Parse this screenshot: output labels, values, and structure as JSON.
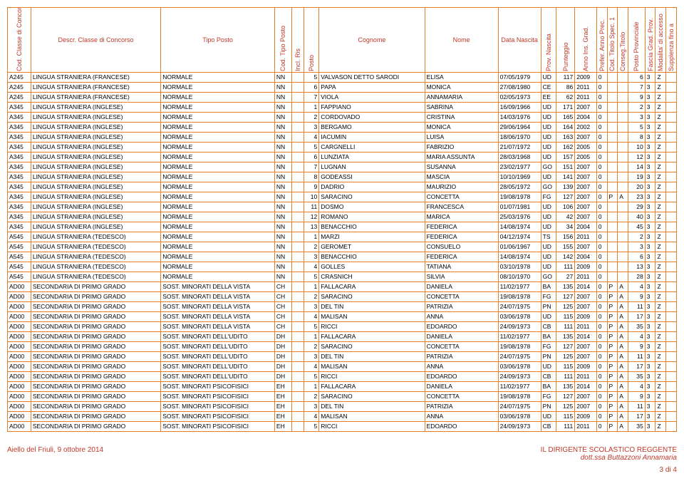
{
  "headers": [
    "Cod. Classe di Concorso",
    "Descr. Classe di Concorso",
    "Tipo Posto",
    "Cod. Tipo Posto",
    "Incl. Ris",
    "Posto",
    "Cognome",
    "Nome",
    "Data Nascita",
    "Prov. Nascita",
    "Punteggio",
    "Anno Ins. Grad.",
    "Prefer. Anno Prec.",
    "Cod. Titolo Spec. 1",
    "Conseg.Titolo",
    "Posto Provinciale",
    "Fascia Grad. Prov.",
    "Modalita' di accesso",
    "Supplenza fino a"
  ],
  "vertical_flags": [
    true,
    false,
    false,
    true,
    true,
    true,
    false,
    false,
    false,
    true,
    true,
    true,
    true,
    true,
    true,
    true,
    true,
    true,
    true
  ],
  "col_class": [
    "c0",
    "c1",
    "c2",
    "c3",
    "c4",
    "c5",
    "c6",
    "c7",
    "c8",
    "c9",
    "c10",
    "c11",
    "c12",
    "c13",
    "c14",
    "c15",
    "c16",
    "c17",
    "c18"
  ],
  "col_align": [
    "",
    "",
    "",
    "",
    "",
    "num",
    "",
    "",
    "",
    "",
    "num",
    "",
    "",
    "",
    "",
    "num",
    "",
    "",
    ""
  ],
  "rows": [
    [
      "A245",
      "LINGUA STRANIERA (FRANCESE)",
      "NORMALE",
      "NN",
      "",
      "5",
      "VALVASON DETTO SARODI",
      "ELISA",
      "07/05/1979",
      "UD",
      "117",
      "2009",
      "0",
      "",
      "",
      "6",
      "3",
      "Z",
      ""
    ],
    [
      "A245",
      "LINGUA STRANIERA (FRANCESE)",
      "NORMALE",
      "NN",
      "",
      "6",
      "PAPA",
      "MONICA",
      "27/08/1980",
      "CE",
      "86",
      "2011",
      "0",
      "",
      "",
      "7",
      "3",
      "Z",
      ""
    ],
    [
      "A245",
      "LINGUA STRANIERA (FRANCESE)",
      "NORMALE",
      "NN",
      "",
      "7",
      "VIOLA",
      "ANNAMARIA",
      "02/05/1973",
      "EE",
      "62",
      "2011",
      "0",
      "",
      "",
      "9",
      "3",
      "Z",
      ""
    ],
    [
      "A345",
      "LINGUA STRANIERA (INGLESE)",
      "NORMALE",
      "NN",
      "",
      "1",
      "FAPPIANO",
      "SABRINA",
      "16/09/1966",
      "UD",
      "171",
      "2007",
      "0",
      "",
      "",
      "2",
      "3",
      "Z",
      ""
    ],
    [
      "A345",
      "LINGUA STRANIERA (INGLESE)",
      "NORMALE",
      "NN",
      "",
      "2",
      "CORDOVADO",
      "CRISTINA",
      "14/03/1976",
      "UD",
      "165",
      "2004",
      "0",
      "",
      "",
      "3",
      "3",
      "Z",
      ""
    ],
    [
      "A345",
      "LINGUA STRANIERA (INGLESE)",
      "NORMALE",
      "NN",
      "",
      "3",
      "BERGAMO",
      "MONICA",
      "29/06/1964",
      "UD",
      "164",
      "2002",
      "0",
      "",
      "",
      "5",
      "3",
      "Z",
      ""
    ],
    [
      "A345",
      "LINGUA STRANIERA (INGLESE)",
      "NORMALE",
      "NN",
      "",
      "4",
      "IACUMIN",
      "LUISA",
      "18/06/1970",
      "UD",
      "163",
      "2007",
      "0",
      "",
      "",
      "8",
      "3",
      "Z",
      ""
    ],
    [
      "A345",
      "LINGUA STRANIERA (INGLESE)",
      "NORMALE",
      "NN",
      "",
      "5",
      "CARGNELLI",
      "FABRIZIO",
      "21/07/1972",
      "UD",
      "162",
      "2005",
      "0",
      "",
      "",
      "10",
      "3",
      "Z",
      ""
    ],
    [
      "A345",
      "LINGUA STRANIERA (INGLESE)",
      "NORMALE",
      "NN",
      "",
      "6",
      "LUNZIATA",
      "MARIA ASSUNTA",
      "28/03/1968",
      "UD",
      "157",
      "2005",
      "0",
      "",
      "",
      "12",
      "3",
      "Z",
      ""
    ],
    [
      "A345",
      "LINGUA STRANIERA (INGLESE)",
      "NORMALE",
      "NN",
      "",
      "7",
      "LUGNAN",
      "SUSANNA",
      "23/02/1977",
      "GO",
      "151",
      "2007",
      "0",
      "",
      "",
      "14",
      "3",
      "Z",
      ""
    ],
    [
      "A345",
      "LINGUA STRANIERA (INGLESE)",
      "NORMALE",
      "NN",
      "",
      "8",
      "GODEASSI",
      "MASCIA",
      "10/10/1969",
      "UD",
      "141",
      "2007",
      "0",
      "",
      "",
      "19",
      "3",
      "Z",
      ""
    ],
    [
      "A345",
      "LINGUA STRANIERA (INGLESE)",
      "NORMALE",
      "NN",
      "",
      "9",
      "DADRIO",
      "MAURIZIO",
      "28/05/1972",
      "GO",
      "139",
      "2007",
      "0",
      "",
      "",
      "20",
      "3",
      "Z",
      ""
    ],
    [
      "A345",
      "LINGUA STRANIERA (INGLESE)",
      "NORMALE",
      "NN",
      "",
      "10",
      "SARACINO",
      "CONCETTA",
      "19/08/1978",
      "FG",
      "127",
      "2007",
      "0",
      "P",
      "A",
      "23",
      "3",
      "Z",
      ""
    ],
    [
      "A345",
      "LINGUA STRANIERA (INGLESE)",
      "NORMALE",
      "NN",
      "",
      "11",
      "DOSMO",
      "FRANCESCA",
      "01/07/1981",
      "UD",
      "106",
      "2007",
      "0",
      "",
      "",
      "29",
      "3",
      "Z",
      ""
    ],
    [
      "A345",
      "LINGUA STRANIERA (INGLESE)",
      "NORMALE",
      "NN",
      "",
      "12",
      "ROMANO",
      "MARICA",
      "25/03/1976",
      "UD",
      "42",
      "2007",
      "0",
      "",
      "",
      "40",
      "3",
      "Z",
      ""
    ],
    [
      "A345",
      "LINGUA STRANIERA (INGLESE)",
      "NORMALE",
      "NN",
      "",
      "13",
      "BENACCHIO",
      "FEDERICA",
      "14/08/1974",
      "UD",
      "34",
      "2004",
      "0",
      "",
      "",
      "45",
      "3",
      "Z",
      ""
    ],
    [
      "A545",
      "LINGUA STRANIERA (TEDESCO)",
      "NORMALE",
      "NN",
      "",
      "1",
      "MARZI",
      "FEDERICA",
      "04/12/1974",
      "TS",
      "156",
      "2011",
      "0",
      "",
      "",
      "2",
      "3",
      "Z",
      ""
    ],
    [
      "A545",
      "LINGUA STRANIERA (TEDESCO)",
      "NORMALE",
      "NN",
      "",
      "2",
      "GEROMET",
      "CONSUELO",
      "01/06/1967",
      "UD",
      "155",
      "2007",
      "0",
      "",
      "",
      "3",
      "3",
      "Z",
      ""
    ],
    [
      "A545",
      "LINGUA STRANIERA (TEDESCO)",
      "NORMALE",
      "NN",
      "",
      "3",
      "BENACCHIO",
      "FEDERICA",
      "14/08/1974",
      "UD",
      "142",
      "2004",
      "0",
      "",
      "",
      "6",
      "3",
      "Z",
      ""
    ],
    [
      "A545",
      "LINGUA STRANIERA (TEDESCO)",
      "NORMALE",
      "NN",
      "",
      "4",
      "GOLLES",
      "TATIANA",
      "03/10/1978",
      "UD",
      "111",
      "2009",
      "0",
      "",
      "",
      "13",
      "3",
      "Z",
      ""
    ],
    [
      "A545",
      "LINGUA STRANIERA (TEDESCO)",
      "NORMALE",
      "NN",
      "",
      "5",
      "CRASNICH",
      "SILVIA",
      "08/10/1970",
      "GO",
      "27",
      "2011",
      "0",
      "",
      "",
      "28",
      "3",
      "Z",
      ""
    ],
    [
      "AD00",
      "SECONDARIA DI PRIMO GRADO",
      "SOST. MINORATI DELLA VISTA",
      "CH",
      "",
      "1",
      "FALLACARA",
      "DANIELA",
      "11/02/1977",
      "BA",
      "135",
      "2014",
      "0",
      "P",
      "A",
      "4",
      "3",
      "Z",
      ""
    ],
    [
      "AD00",
      "SECONDARIA DI PRIMO GRADO",
      "SOST. MINORATI DELLA VISTA",
      "CH",
      "",
      "2",
      "SARACINO",
      "CONCETTA",
      "19/08/1978",
      "FG",
      "127",
      "2007",
      "0",
      "P",
      "A",
      "9",
      "3",
      "Z",
      ""
    ],
    [
      "AD00",
      "SECONDARIA DI PRIMO GRADO",
      "SOST. MINORATI DELLA VISTA",
      "CH",
      "",
      "3",
      "DEL TIN",
      "PATRIZIA",
      "24/07/1975",
      "PN",
      "125",
      "2007",
      "0",
      "P",
      "A",
      "11",
      "3",
      "Z",
      ""
    ],
    [
      "AD00",
      "SECONDARIA DI PRIMO GRADO",
      "SOST. MINORATI DELLA VISTA",
      "CH",
      "",
      "4",
      "MALISAN",
      "ANNA",
      "03/06/1978",
      "UD",
      "115",
      "2009",
      "0",
      "P",
      "A",
      "17",
      "3",
      "Z",
      ""
    ],
    [
      "AD00",
      "SECONDARIA DI PRIMO GRADO",
      "SOST. MINORATI DELLA VISTA",
      "CH",
      "",
      "5",
      "RICCI",
      "EDOARDO",
      "24/09/1973",
      "CB",
      "111",
      "2011",
      "0",
      "P",
      "A",
      "35",
      "3",
      "Z",
      ""
    ],
    [
      "AD00",
      "SECONDARIA DI PRIMO GRADO",
      "SOST. MINORATI DELL'UDITO",
      "DH",
      "",
      "1",
      "FALLACARA",
      "DANIELA",
      "11/02/1977",
      "BA",
      "135",
      "2014",
      "0",
      "P",
      "A",
      "4",
      "3",
      "Z",
      ""
    ],
    [
      "AD00",
      "SECONDARIA DI PRIMO GRADO",
      "SOST. MINORATI DELL'UDITO",
      "DH",
      "",
      "2",
      "SARACINO",
      "CONCETTA",
      "19/08/1978",
      "FG",
      "127",
      "2007",
      "0",
      "P",
      "A",
      "9",
      "3",
      "Z",
      ""
    ],
    [
      "AD00",
      "SECONDARIA DI PRIMO GRADO",
      "SOST. MINORATI DELL'UDITO",
      "DH",
      "",
      "3",
      "DEL TIN",
      "PATRIZIA",
      "24/07/1975",
      "PN",
      "125",
      "2007",
      "0",
      "P",
      "A",
      "11",
      "3",
      "Z",
      ""
    ],
    [
      "AD00",
      "SECONDARIA DI PRIMO GRADO",
      "SOST. MINORATI DELL'UDITO",
      "DH",
      "",
      "4",
      "MALISAN",
      "ANNA",
      "03/06/1978",
      "UD",
      "115",
      "2009",
      "0",
      "P",
      "A",
      "17",
      "3",
      "Z",
      ""
    ],
    [
      "AD00",
      "SECONDARIA DI PRIMO GRADO",
      "SOST. MINORATI DELL'UDITO",
      "DH",
      "",
      "5",
      "RICCI",
      "EDOARDO",
      "24/09/1973",
      "CB",
      "111",
      "2011",
      "0",
      "P",
      "A",
      "35",
      "3",
      "Z",
      ""
    ],
    [
      "AD00",
      "SECONDARIA DI PRIMO GRADO",
      "SOST. MINORATI PSICOFISICI",
      "EH",
      "",
      "1",
      "FALLACARA",
      "DANIELA",
      "11/02/1977",
      "BA",
      "135",
      "2014",
      "0",
      "P",
      "A",
      "4",
      "3",
      "Z",
      ""
    ],
    [
      "AD00",
      "SECONDARIA DI PRIMO GRADO",
      "SOST. MINORATI PSICOFISICI",
      "EH",
      "",
      "2",
      "SARACINO",
      "CONCETTA",
      "19/08/1978",
      "FG",
      "127",
      "2007",
      "0",
      "P",
      "A",
      "9",
      "3",
      "Z",
      ""
    ],
    [
      "AD00",
      "SECONDARIA DI PRIMO GRADO",
      "SOST. MINORATI PSICOFISICI",
      "EH",
      "",
      "3",
      "DEL TIN",
      "PATRIZIA",
      "24/07/1975",
      "PN",
      "125",
      "2007",
      "0",
      "P",
      "A",
      "11",
      "3",
      "Z",
      ""
    ],
    [
      "AD00",
      "SECONDARIA DI PRIMO GRADO",
      "SOST. MINORATI PSICOFISICI",
      "EH",
      "",
      "4",
      "MALISAN",
      "ANNA",
      "03/06/1978",
      "UD",
      "115",
      "2009",
      "0",
      "P",
      "A",
      "17",
      "3",
      "Z",
      ""
    ],
    [
      "AD00",
      "SECONDARIA DI PRIMO GRADO",
      "SOST. MINORATI PSICOFISICI",
      "EH",
      "",
      "5",
      "RICCI",
      "EDOARDO",
      "24/09/1973",
      "CB",
      "111",
      "2011",
      "0",
      "P",
      "A",
      "35",
      "3",
      "Z",
      ""
    ]
  ],
  "footer": {
    "left": "Aiello del Friuli, 9 ottobre 2014",
    "right1": "IL DIRIGENTE SCOLASTICO REGGENTE",
    "right2": "dott.ssa Buttazzoni Annamaria",
    "page": "3 di 4"
  },
  "style": {
    "border_color": "#e67e22",
    "text_color": "#c0392b",
    "body_fontsize": 9,
    "cell_fontsize": 8.5
  }
}
